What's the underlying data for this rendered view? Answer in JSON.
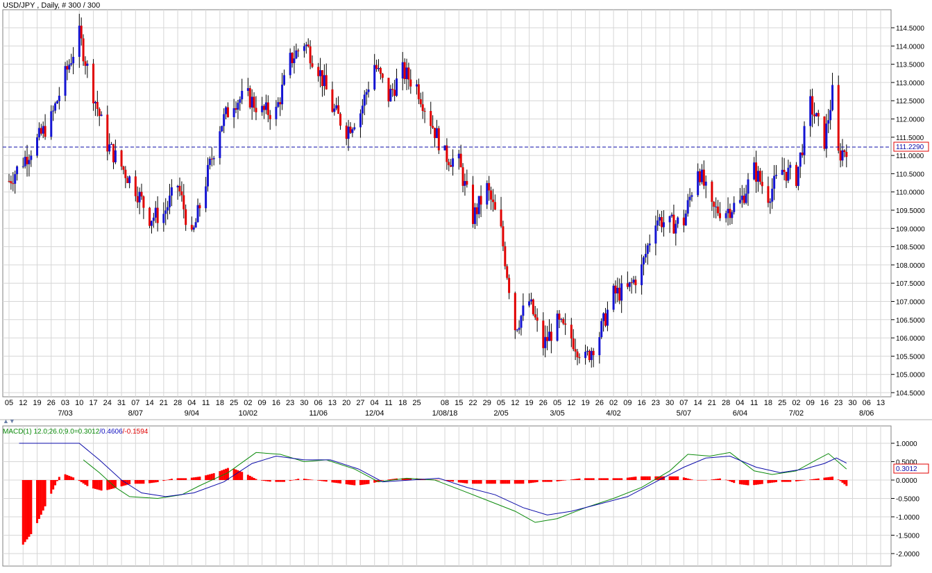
{
  "header": {
    "title": "USD/JPY , Daily, # 300 / 300"
  },
  "price_panel": {
    "last_price_label": "111.2290",
    "y_ticks": [
      "114.5000",
      "114.0000",
      "113.5000",
      "113.0000",
      "112.5000",
      "112.0000",
      "111.5000",
      "111.0000",
      "110.5000",
      "110.0000",
      "109.5000",
      "109.0000",
      "108.5000",
      "108.0000",
      "107.5000",
      "107.0000",
      "106.5000",
      "106.0000",
      "105.5000",
      "105.0000",
      "104.5000"
    ],
    "x_day_labels": [
      "05",
      "12",
      "19",
      "26",
      "03",
      "10",
      "17",
      "24",
      "31",
      "07",
      "14",
      "21",
      "28",
      "04",
      "11",
      "18",
      "25",
      "02",
      "09",
      "16",
      "23",
      "30",
      "06",
      "13",
      "20",
      "27",
      "04",
      "11",
      "18",
      "25",
      "08",
      "15",
      "22",
      "29",
      "05",
      "12",
      "19",
      "26",
      "05",
      "12",
      "19",
      "26",
      "02",
      "09",
      "16",
      "23",
      "30",
      "07",
      "14",
      "21",
      "28",
      "04",
      "11",
      "18",
      "25",
      "02",
      "09",
      "16",
      "23",
      "30",
      "06",
      "13"
    ],
    "x_month_labels": [
      "7/03",
      "8/07",
      "9/04",
      "10/02",
      "11/06",
      "12/04",
      "1/08/18",
      "2/05",
      "3/05",
      "4/02",
      "5/07",
      "6/04",
      "7/02",
      "8/06"
    ]
  },
  "macd_panel": {
    "label_prefix": "MACD(1) 12.0;26.0;9.0=",
    "label_hist": "0.3012",
    "label_sep1": "/",
    "label_signal": "0.4606",
    "label_sep2": "/",
    "label_diff": "-0.1594",
    "value_label": "0.3012",
    "y_ticks": [
      "1.0000",
      "0.5000",
      "0.0000",
      "-0.5000",
      "-1.0000",
      "-1.5000",
      "-2.0000"
    ]
  },
  "colors": {
    "up": "#1414d2",
    "down": "#e00000",
    "macd_line": "#0a8a0a",
    "signal_line": "#0a0aa8",
    "hist": "#ff0000",
    "grid": "#d6d6d6"
  },
  "chart_data": [
    {
      "type": "candlestick",
      "symbol": "USD/JPY",
      "timeframe": "Daily",
      "ylim": [
        104.5,
        114.75
      ],
      "last": 111.229,
      "anchors": [
        {
          "date": "2017-06-05",
          "close": 110.3
        },
        {
          "date": "2017-06-19",
          "close": 111.4
        },
        {
          "date": "2017-06-26",
          "close": 112.0
        },
        {
          "date": "2017-07-03",
          "close": 113.2
        },
        {
          "date": "2017-07-10",
          "close": 114.3
        },
        {
          "date": "2017-07-17",
          "close": 112.7
        },
        {
          "date": "2017-07-24",
          "close": 111.3
        },
        {
          "date": "2017-07-31",
          "close": 110.7
        },
        {
          "date": "2017-08-07",
          "close": 110.1
        },
        {
          "date": "2017-08-14",
          "close": 109.3
        },
        {
          "date": "2017-08-21",
          "close": 109.4
        },
        {
          "date": "2017-08-28",
          "close": 110.2
        },
        {
          "date": "2017-09-04",
          "close": 108.7
        },
        {
          "date": "2017-09-11",
          "close": 110.3
        },
        {
          "date": "2017-09-18",
          "close": 111.8
        },
        {
          "date": "2017-09-25",
          "close": 112.5
        },
        {
          "date": "2017-10-02",
          "close": 112.6
        },
        {
          "date": "2017-10-09",
          "close": 112.2
        },
        {
          "date": "2017-10-16",
          "close": 112.2
        },
        {
          "date": "2017-10-23",
          "close": 113.6
        },
        {
          "date": "2017-10-30",
          "close": 114.1
        },
        {
          "date": "2017-11-06",
          "close": 113.4
        },
        {
          "date": "2017-11-13",
          "close": 112.3
        },
        {
          "date": "2017-11-20",
          "close": 111.7
        },
        {
          "date": "2017-11-27",
          "close": 112.2
        },
        {
          "date": "2017-12-04",
          "close": 113.5
        },
        {
          "date": "2017-12-11",
          "close": 112.6
        },
        {
          "date": "2017-12-18",
          "close": 113.3
        },
        {
          "date": "2017-12-25",
          "close": 112.9
        },
        {
          "date": "2018-01-08",
          "close": 111.0
        },
        {
          "date": "2018-01-15",
          "close": 110.8
        },
        {
          "date": "2018-01-22",
          "close": 109.3
        },
        {
          "date": "2018-01-29",
          "close": 110.1
        },
        {
          "date": "2018-02-05",
          "close": 108.9
        },
        {
          "date": "2018-02-12",
          "close": 106.3
        },
        {
          "date": "2018-02-19",
          "close": 107.0
        },
        {
          "date": "2018-02-26",
          "close": 105.8
        },
        {
          "date": "2018-03-05",
          "close": 106.4
        },
        {
          "date": "2018-03-12",
          "close": 106.0
        },
        {
          "date": "2018-03-19",
          "close": 105.4
        },
        {
          "date": "2018-03-26",
          "close": 106.1
        },
        {
          "date": "2018-04-02",
          "close": 107.2
        },
        {
          "date": "2018-04-09",
          "close": 107.3
        },
        {
          "date": "2018-04-16",
          "close": 107.9
        },
        {
          "date": "2018-04-23",
          "close": 109.3
        },
        {
          "date": "2018-04-30",
          "close": 109.1
        },
        {
          "date": "2018-05-07",
          "close": 109.2
        },
        {
          "date": "2018-05-14",
          "close": 110.7
        },
        {
          "date": "2018-05-21",
          "close": 109.5
        },
        {
          "date": "2018-05-28",
          "close": 109.5
        },
        {
          "date": "2018-06-04",
          "close": 109.7
        },
        {
          "date": "2018-06-11",
          "close": 110.6
        },
        {
          "date": "2018-06-18",
          "close": 109.9
        },
        {
          "date": "2018-06-25",
          "close": 110.6
        },
        {
          "date": "2018-07-02",
          "close": 110.4
        },
        {
          "date": "2018-07-09",
          "close": 112.4
        },
        {
          "date": "2018-07-16",
          "close": 111.4
        },
        {
          "date": "2018-07-20",
          "close": 112.7
        },
        {
          "date": "2018-07-23",
          "close": 111.0
        },
        {
          "date": "2018-07-27",
          "close": 111.229
        }
      ]
    },
    {
      "type": "line",
      "name": "MACD(1) 12.0;26.0;9.0",
      "ylim": [
        -2.05,
        1.15
      ],
      "series": [
        {
          "name": "macd",
          "points": [
            [
              "2017-07-12",
              0.55
            ],
            [
              "2017-07-20",
              0.2
            ],
            [
              "2017-07-28",
              -0.2
            ],
            [
              "2017-08-04",
              -0.45
            ],
            [
              "2017-08-18",
              -0.5
            ],
            [
              "2017-08-30",
              -0.4
            ],
            [
              "2017-09-08",
              -0.15
            ],
            [
              "2017-09-22",
              0.2
            ],
            [
              "2017-10-06",
              0.75
            ],
            [
              "2017-10-18",
              0.7
            ],
            [
              "2017-10-30",
              0.5
            ],
            [
              "2017-11-10",
              0.55
            ],
            [
              "2017-11-24",
              0.3
            ],
            [
              "2017-12-06",
              -0.05
            ],
            [
              "2017-12-20",
              0.05
            ],
            [
              "2018-01-03",
              0.0
            ],
            [
              "2018-01-15",
              -0.25
            ],
            [
              "2018-01-29",
              -0.55
            ],
            [
              "2018-02-12",
              -0.85
            ],
            [
              "2018-02-22",
              -1.15
            ],
            [
              "2018-03-05",
              -1.05
            ],
            [
              "2018-03-19",
              -0.75
            ],
            [
              "2018-04-02",
              -0.5
            ],
            [
              "2018-04-16",
              -0.2
            ],
            [
              "2018-04-30",
              0.25
            ],
            [
              "2018-05-09",
              0.7
            ],
            [
              "2018-05-20",
              0.65
            ],
            [
              "2018-05-30",
              0.75
            ],
            [
              "2018-06-11",
              0.25
            ],
            [
              "2018-06-20",
              0.15
            ],
            [
              "2018-07-02",
              0.25
            ],
            [
              "2018-07-12",
              0.55
            ],
            [
              "2018-07-18",
              0.72
            ],
            [
              "2018-07-27",
              0.3
            ]
          ]
        },
        {
          "name": "signal",
          "points": [
            [
              "2017-06-10",
              1.0
            ],
            [
              "2017-07-10",
              1.0
            ],
            [
              "2017-07-20",
              0.55
            ],
            [
              "2017-07-31",
              0.0
            ],
            [
              "2017-08-10",
              -0.35
            ],
            [
              "2017-08-22",
              -0.45
            ],
            [
              "2017-09-05",
              -0.35
            ],
            [
              "2017-09-20",
              -0.05
            ],
            [
              "2017-10-04",
              0.45
            ],
            [
              "2017-10-16",
              0.65
            ],
            [
              "2017-10-30",
              0.55
            ],
            [
              "2017-11-12",
              0.55
            ],
            [
              "2017-11-26",
              0.3
            ],
            [
              "2017-12-08",
              -0.05
            ],
            [
              "2017-12-22",
              0.0
            ],
            [
              "2018-01-05",
              0.05
            ],
            [
              "2018-01-19",
              -0.2
            ],
            [
              "2018-02-02",
              -0.4
            ],
            [
              "2018-02-16",
              -0.75
            ],
            [
              "2018-02-28",
              -0.95
            ],
            [
              "2018-03-12",
              -0.85
            ],
            [
              "2018-03-26",
              -0.65
            ],
            [
              "2018-04-09",
              -0.45
            ],
            [
              "2018-04-23",
              -0.05
            ],
            [
              "2018-05-07",
              0.35
            ],
            [
              "2018-05-18",
              0.6
            ],
            [
              "2018-05-30",
              0.65
            ],
            [
              "2018-06-12",
              0.35
            ],
            [
              "2018-06-24",
              0.2
            ],
            [
              "2018-07-06",
              0.3
            ],
            [
              "2018-07-16",
              0.45
            ],
            [
              "2018-07-22",
              0.6
            ],
            [
              "2018-07-27",
              0.46
            ]
          ]
        },
        {
          "name": "histogram",
          "points": [
            [
              "2017-06-10",
              -1.9
            ],
            [
              "2017-06-17",
              -1.4
            ],
            [
              "2017-06-24",
              -0.6
            ],
            [
              "2017-07-01",
              0.2
            ],
            [
              "2017-07-08",
              0.05
            ],
            [
              "2017-07-15",
              -0.2
            ],
            [
              "2017-07-22",
              -0.3
            ],
            [
              "2017-07-29",
              -0.2
            ],
            [
              "2017-08-05",
              -0.1
            ],
            [
              "2017-08-12",
              -0.1
            ],
            [
              "2017-08-19",
              -0.05
            ],
            [
              "2017-08-26",
              0.05
            ],
            [
              "2017-09-02",
              0.05
            ],
            [
              "2017-09-09",
              0.1
            ],
            [
              "2017-09-16",
              0.2
            ],
            [
              "2017-09-23",
              0.35
            ],
            [
              "2017-09-30",
              0.2
            ],
            [
              "2017-10-07",
              0.0
            ],
            [
              "2017-10-14",
              -0.05
            ],
            [
              "2017-10-21",
              -0.05
            ],
            [
              "2017-10-28",
              0.05
            ],
            [
              "2017-11-04",
              0.0
            ],
            [
              "2017-11-11",
              -0.05
            ],
            [
              "2017-11-18",
              -0.1
            ],
            [
              "2017-11-25",
              -0.15
            ],
            [
              "2017-12-02",
              -0.1
            ],
            [
              "2017-12-09",
              0.0
            ],
            [
              "2017-12-16",
              0.05
            ],
            [
              "2017-12-23",
              0.05
            ],
            [
              "2018-01-06",
              0.0
            ],
            [
              "2018-01-13",
              -0.05
            ],
            [
              "2018-01-20",
              -0.1
            ],
            [
              "2018-01-27",
              -0.1
            ],
            [
              "2018-02-03",
              -0.1
            ],
            [
              "2018-02-10",
              -0.1
            ],
            [
              "2018-02-17",
              -0.1
            ],
            [
              "2018-02-24",
              -0.05
            ],
            [
              "2018-03-03",
              -0.05
            ],
            [
              "2018-03-10",
              0.0
            ],
            [
              "2018-03-17",
              0.05
            ],
            [
              "2018-03-24",
              0.05
            ],
            [
              "2018-03-31",
              0.05
            ],
            [
              "2018-04-07",
              0.05
            ],
            [
              "2018-04-14",
              0.1
            ],
            [
              "2018-04-21",
              0.1
            ],
            [
              "2018-04-28",
              0.1
            ],
            [
              "2018-05-05",
              0.1
            ],
            [
              "2018-05-12",
              0.0
            ],
            [
              "2018-05-19",
              0.0
            ],
            [
              "2018-05-26",
              0.05
            ],
            [
              "2018-06-02",
              -0.1
            ],
            [
              "2018-06-09",
              -0.15
            ],
            [
              "2018-06-16",
              -0.1
            ],
            [
              "2018-06-23",
              -0.05
            ],
            [
              "2018-06-30",
              -0.05
            ],
            [
              "2018-07-07",
              0.0
            ],
            [
              "2018-07-14",
              0.05
            ],
            [
              "2018-07-21",
              0.1
            ],
            [
              "2018-07-27",
              -0.16
            ]
          ]
        }
      ]
    }
  ]
}
